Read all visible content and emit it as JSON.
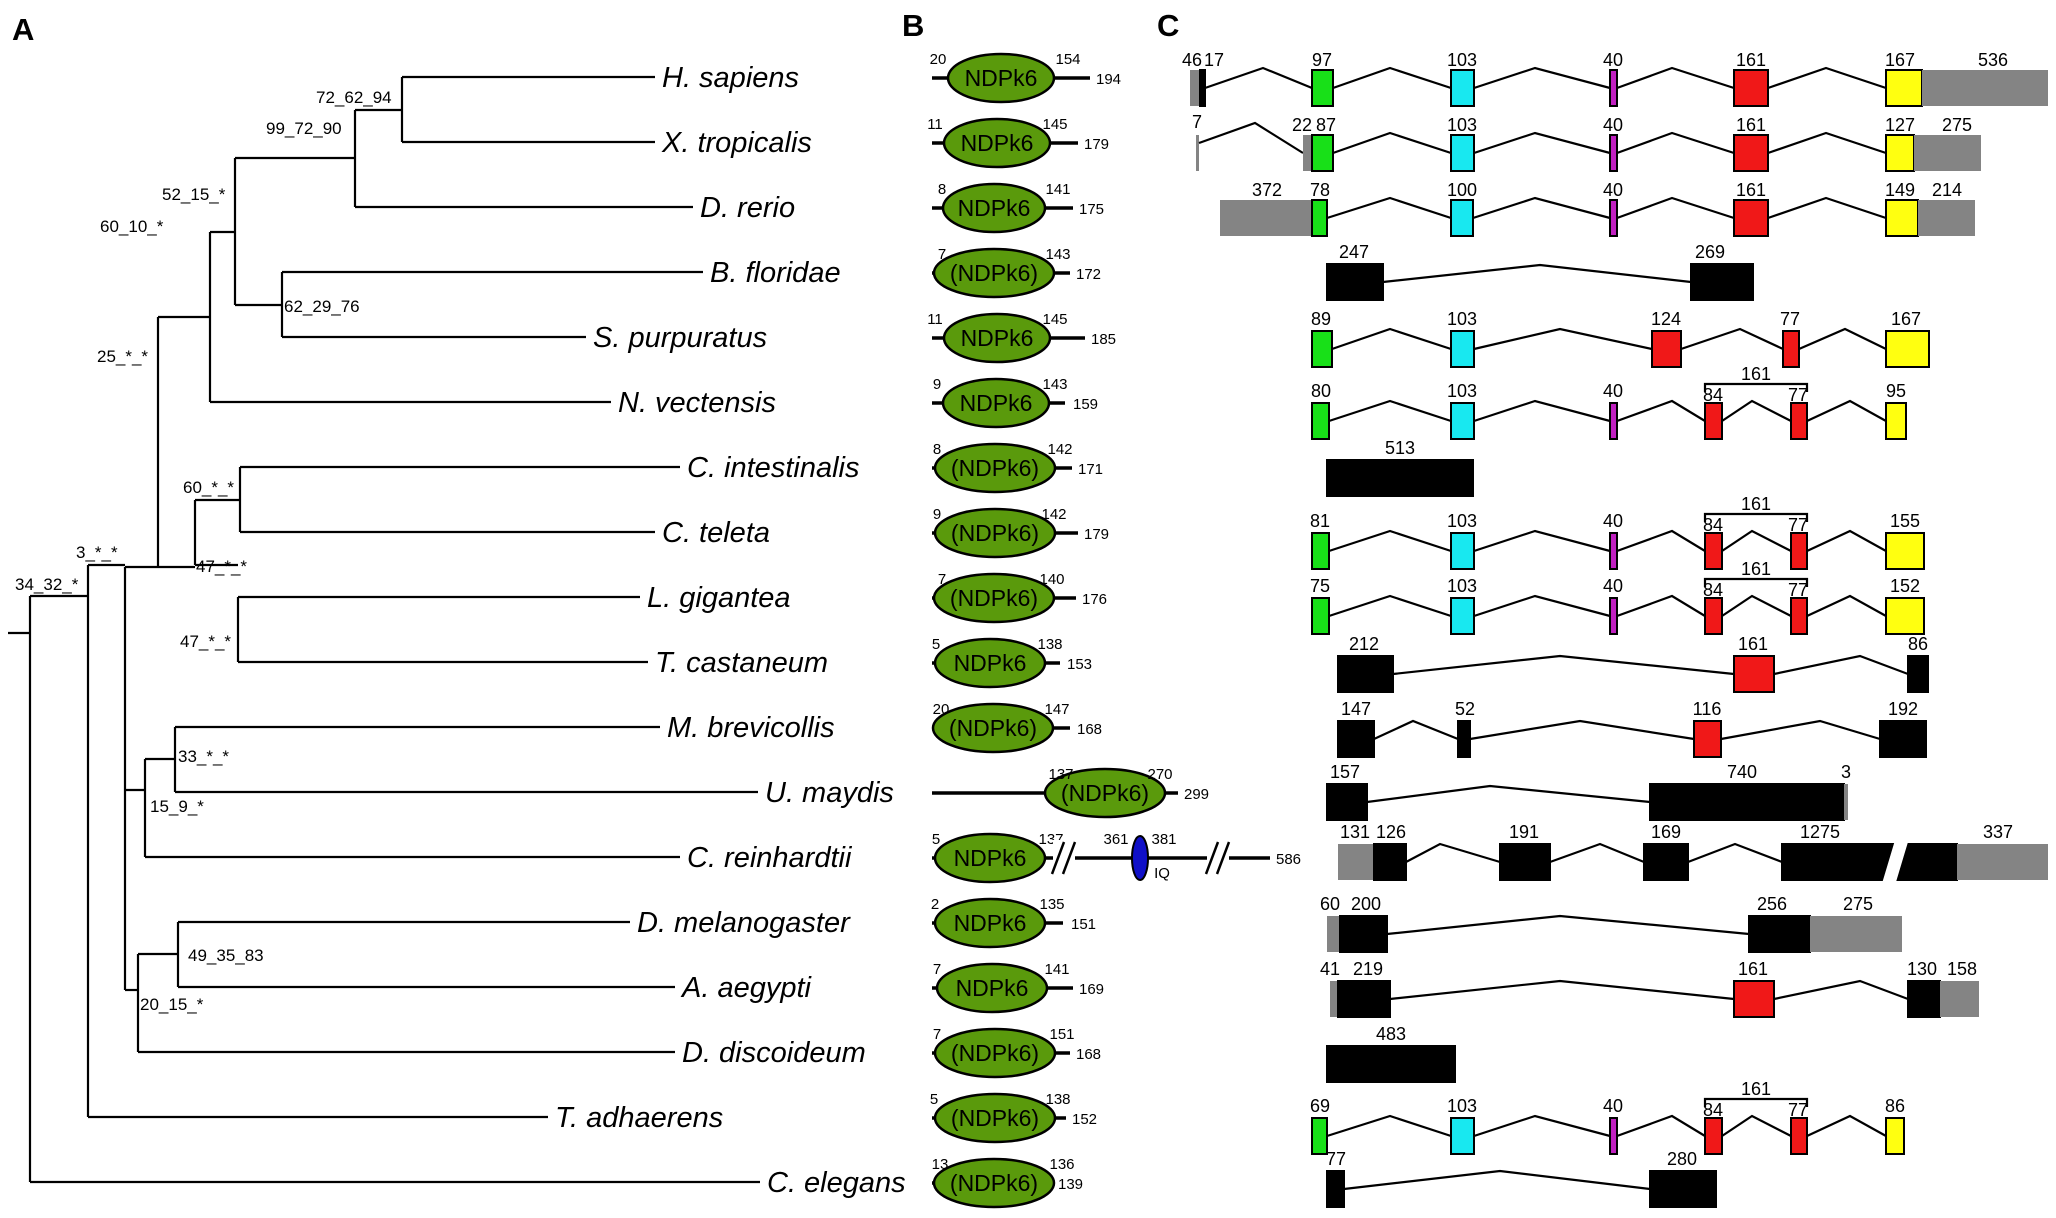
{
  "panels": {
    "a": "A",
    "b": "B",
    "c": "C"
  },
  "colors": {
    "ndpk_domain": "#5a9a0c",
    "iq_domain": "#1010c8",
    "exon_green": "#18e018",
    "exon_cyan": "#18e8f0",
    "exon_magenta": "#c020c0",
    "exon_red": "#f01818",
    "exon_yellow": "#ffff10",
    "exon_black": "#000000",
    "utr_gray": "#848484"
  },
  "species": [
    "H. sapiens",
    "X. tropicalis",
    "D. rerio",
    "B. floridae",
    "S. purpuratus",
    "N. vectensis",
    "C. intestinalis",
    "C. teleta",
    "L. gigantea",
    "T. castaneum",
    "M. brevicollis",
    "U. maydis",
    "C. reinhardtii",
    "D. melanogaster",
    "A. aegypti",
    "D. discoideum",
    "T. adhaerens",
    "C. elegans"
  ],
  "supports": [
    "72_62_94",
    "99_72_90",
    "52_15_*",
    "60_10_*",
    "62_29_76",
    "25_*_*",
    "60_*_*",
    "47_*_*",
    "47_*_*",
    "3_*_*",
    "34_32_*",
    "33_*_*",
    "15_9_*",
    "49_35_83",
    "20_15_*"
  ],
  "proteins": [
    {
      "domain": "NDPk6",
      "start": "20",
      "end": "154",
      "length": "194"
    },
    {
      "domain": "NDPk6",
      "start": "11",
      "end": "145",
      "length": "179"
    },
    {
      "domain": "NDPk6",
      "start": "8",
      "end": "141",
      "length": "175"
    },
    {
      "domain": "(NDPk6)",
      "start": "7",
      "end": "143",
      "length": "172"
    },
    {
      "domain": "NDPk6",
      "start": "11",
      "end": "145",
      "length": "185"
    },
    {
      "domain": "NDPk6",
      "start": "9",
      "end": "143",
      "length": "159"
    },
    {
      "domain": "(NDPk6)",
      "start": "8",
      "end": "142",
      "length": "171"
    },
    {
      "domain": "(NDPk6)",
      "start": "9",
      "end": "142",
      "length": "179"
    },
    {
      "domain": "(NDPk6)",
      "start": "7",
      "end": "140",
      "length": "176"
    },
    {
      "domain": "NDPk6",
      "start": "5",
      "end": "138",
      "length": "153"
    },
    {
      "domain": "(NDPk6)",
      "start": "20",
      "end": "147",
      "length": "168"
    },
    {
      "domain": "(NDPk6)",
      "start": "137",
      "end": "270",
      "length": "299"
    },
    {
      "domain": "NDPk6",
      "start": "5",
      "end": "137",
      "length": "586",
      "iq_label": "IQ",
      "iq_start": "361",
      "iq_end": "381"
    },
    {
      "domain": "NDPk6",
      "start": "2",
      "end": "135",
      "length": "151"
    },
    {
      "domain": "NDPk6",
      "start": "7",
      "end": "141",
      "length": "169"
    },
    {
      "domain": "(NDPk6)",
      "start": "7",
      "end": "151",
      "length": "168"
    },
    {
      "domain": "(NDPk6)",
      "start": "5",
      "end": "138",
      "length": "152"
    },
    {
      "domain": "(NDPk6)",
      "start": "13",
      "end": "136",
      "length": "139"
    }
  ],
  "gene_labels": {
    "r1": [
      "46",
      "17",
      "97",
      "103",
      "40",
      "161",
      "167",
      "536"
    ],
    "r2": [
      "7",
      "22",
      "87",
      "103",
      "40",
      "161",
      "127",
      "275"
    ],
    "r3": [
      "372",
      "78",
      "100",
      "40",
      "161",
      "149",
      "214"
    ],
    "r4": [
      "247",
      "269"
    ],
    "r5": [
      "89",
      "103",
      "124",
      "77",
      "167"
    ],
    "r6": [
      "80",
      "103",
      "40",
      "84",
      "161",
      "77",
      "95"
    ],
    "r7": [
      "513"
    ],
    "r8": [
      "81",
      "103",
      "40",
      "84",
      "161",
      "77",
      "155"
    ],
    "r9": [
      "75",
      "103",
      "40",
      "84",
      "161",
      "77",
      "152"
    ],
    "r10": [
      "212",
      "161",
      "86"
    ],
    "r11": [
      "147",
      "52",
      "116",
      "192"
    ],
    "r12": [
      "157",
      "740",
      "3"
    ],
    "r13": [
      "131",
      "126",
      "191",
      "169",
      "1275",
      "337"
    ],
    "r14": [
      "60",
      "200",
      "256",
      "275"
    ],
    "r15": [
      "41",
      "219",
      "161",
      "130",
      "158"
    ],
    "r16": [
      "483"
    ],
    "r17": [
      "69",
      "103",
      "40",
      "84",
      "161",
      "77",
      "86"
    ],
    "r18": [
      "77",
      "280"
    ]
  }
}
